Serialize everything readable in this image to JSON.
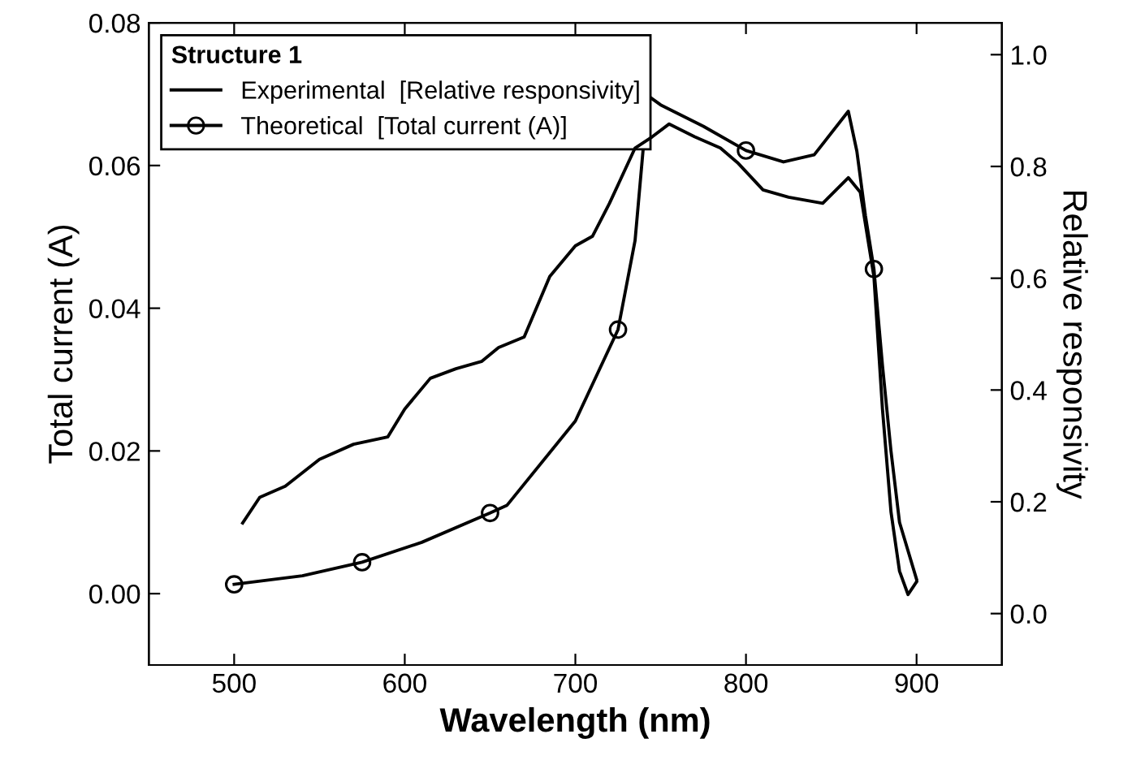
{
  "chart_data": {
    "type": "line",
    "xlabel": "Wavelength (nm)",
    "ylabel": "Total current (A)",
    "y2label": "Relative responsivity",
    "legend_title": "Structure 1",
    "legend": "top left",
    "grid": false,
    "xlim": [
      450,
      950
    ],
    "xticks": [
      500,
      600,
      700,
      800,
      900
    ],
    "ylim": [
      -0.01,
      0.08
    ],
    "yticks": [
      {
        "value": 0,
        "label": "0.00"
      },
      {
        "value": 0.02,
        "label": "0.02"
      },
      {
        "value": 0.04,
        "label": "0.04"
      },
      {
        "value": 0.06,
        "label": "0.06"
      },
      {
        "value": 0.08,
        "label": "0.08"
      }
    ],
    "y2lim": [
      -0.092,
      1.057
    ],
    "y2ticks": [
      {
        "value": 0,
        "label": "0.0"
      },
      {
        "value": 0.2,
        "label": "0.2"
      },
      {
        "value": 0.4,
        "label": "0.4"
      },
      {
        "value": 0.6,
        "label": "0.6"
      },
      {
        "value": 0.8,
        "label": "0.8"
      },
      {
        "value": 1,
        "label": "1.0"
      }
    ],
    "series": [
      {
        "name": "Experimental  [Relative responsivity]",
        "color": "#000000",
        "axis": "y2",
        "marker": "none",
        "x": [
          505,
          515,
          530,
          550,
          570,
          590,
          600,
          615,
          630,
          645,
          655,
          670,
          685,
          700,
          710,
          720,
          735,
          745,
          755,
          770,
          785,
          795,
          810,
          825,
          845,
          860,
          867,
          875,
          880,
          885,
          890,
          895,
          900
        ],
        "values": [
          0.162,
          0.208,
          0.228,
          0.276,
          0.303,
          0.316,
          0.366,
          0.421,
          0.438,
          0.451,
          0.476,
          0.495,
          0.603,
          0.658,
          0.675,
          0.734,
          0.833,
          0.853,
          0.876,
          0.853,
          0.833,
          0.807,
          0.758,
          0.745,
          0.734,
          0.78,
          0.754,
          0.603,
          0.366,
          0.182,
          0.076,
          0.034,
          0.057
        ]
      },
      {
        "type": "scatter",
        "name": "Theoretical  [Total current (A)]",
        "color": "#000000",
        "axis": "y",
        "marker": "circle",
        "x": [
          500,
          575,
          650,
          725,
          800,
          875
        ],
        "values": [
          0.0013,
          0.0044,
          0.0113,
          0.037,
          0.0621,
          0.0455
        ]
      },
      {
        "color": "#000000",
        "axis": "y",
        "marker": "none",
        "x": [
          500,
          540,
          575,
          610,
          650,
          660,
          700,
          725,
          735,
          740,
          743,
          750,
          775,
          800,
          822,
          840,
          860,
          865,
          870,
          875,
          880,
          885,
          890,
          900
        ],
        "values": [
          0.0013,
          0.0025,
          0.0044,
          0.0072,
          0.0113,
          0.0124,
          0.0242,
          0.037,
          0.0495,
          0.063,
          0.0697,
          0.0685,
          0.0655,
          0.0621,
          0.0605,
          0.0615,
          0.0676,
          0.062,
          0.053,
          0.0455,
          0.032,
          0.02,
          0.01,
          0.002
        ]
      }
    ]
  }
}
